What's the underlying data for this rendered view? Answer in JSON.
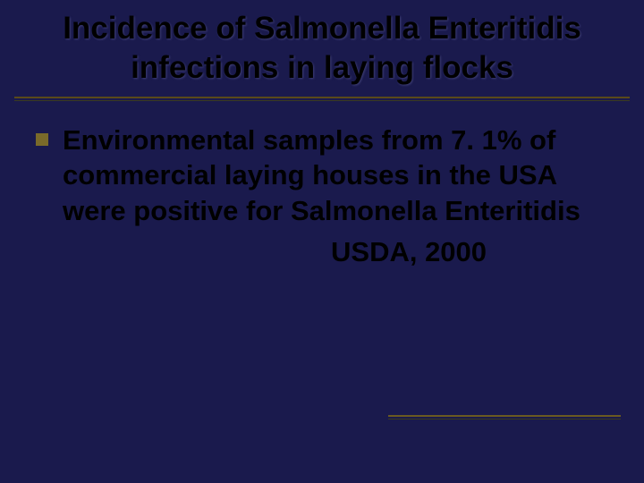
{
  "slide": {
    "background_color": "#1a1a4d",
    "title": {
      "text": "Incidence of Salmonella Enteritidis infections in laying flocks",
      "color": "#000000",
      "font_size_pt": 35,
      "font_weight": "bold",
      "align": "center"
    },
    "title_rule": {
      "line1_color": "#5a4a1a",
      "line2_color": "#3a3a20"
    },
    "bullets": [
      {
        "marker_color": "#7a6a2a",
        "text": "Environmental samples from 7. 1% of commercial laying houses in the USA were positive for Salmonella Enteritidis",
        "text_color": "#000000",
        "font_size_pt": 31,
        "font_weight": "bold"
      }
    ],
    "citation": {
      "text": "USDA, 2000",
      "color": "#000000",
      "font_size_pt": 31,
      "font_weight": "bold"
    },
    "bottom_rule": {
      "line1_color": "#6a5a20",
      "line2_color": "#3a3a20"
    }
  }
}
